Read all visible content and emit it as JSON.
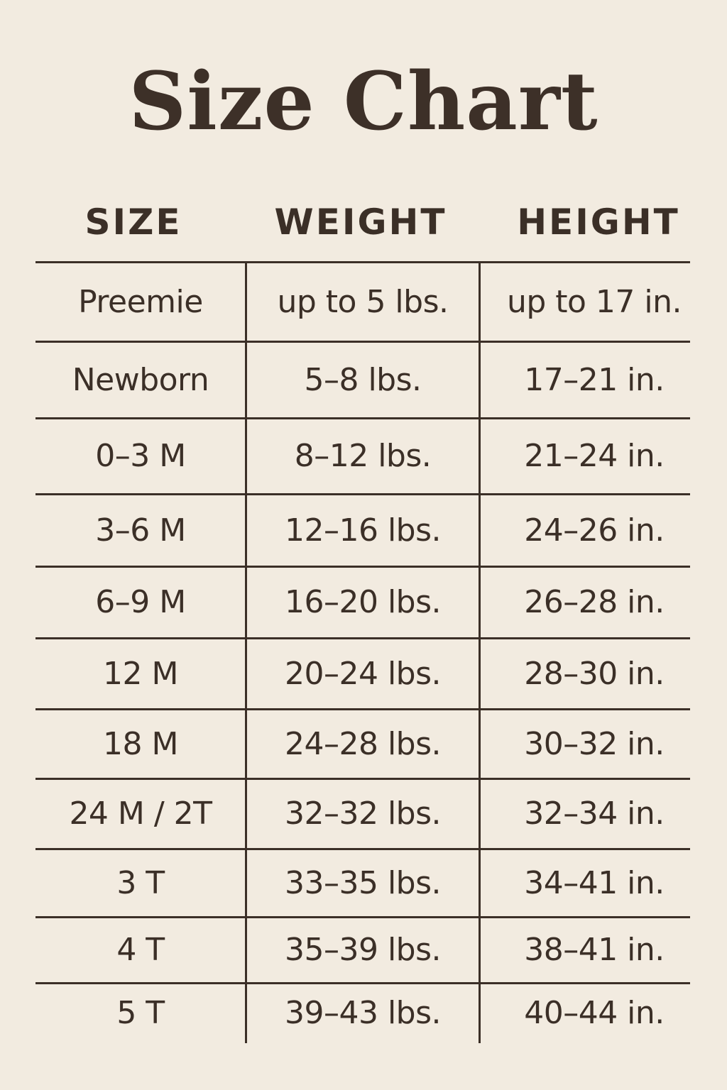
{
  "title": "Size Chart",
  "columns": [
    "SIZE",
    "WEIGHT",
    "HEIGHT"
  ],
  "rows": [
    [
      "Preemie",
      "up to 5 lbs.",
      "up to 17 in."
    ],
    [
      "Newborn",
      "5–8 lbs.",
      "17–21 in."
    ],
    [
      "0–3 M",
      "8–12 lbs.",
      "21–24 in."
    ],
    [
      "3–6 M",
      "12–16 lbs.",
      "24–26 in."
    ],
    [
      "6–9 M",
      "16–20 lbs.",
      "26–28 in."
    ],
    [
      "12 M",
      "20–24 lbs.",
      "28–30 in."
    ],
    [
      "18 M",
      "24–28 lbs.",
      "30–32 in."
    ],
    [
      "24 M / 2T",
      "32–32 lbs.",
      "32–34 in."
    ],
    [
      "3 T",
      "33–35 lbs.",
      "34–41 in."
    ],
    [
      "4 T",
      "35–39 lbs.",
      "38–41 in."
    ],
    [
      "5 T",
      "39–43 lbs.",
      "40–44 in."
    ]
  ],
  "colors": {
    "background": "#f2ebe0",
    "text": "#3b2f27"
  }
}
